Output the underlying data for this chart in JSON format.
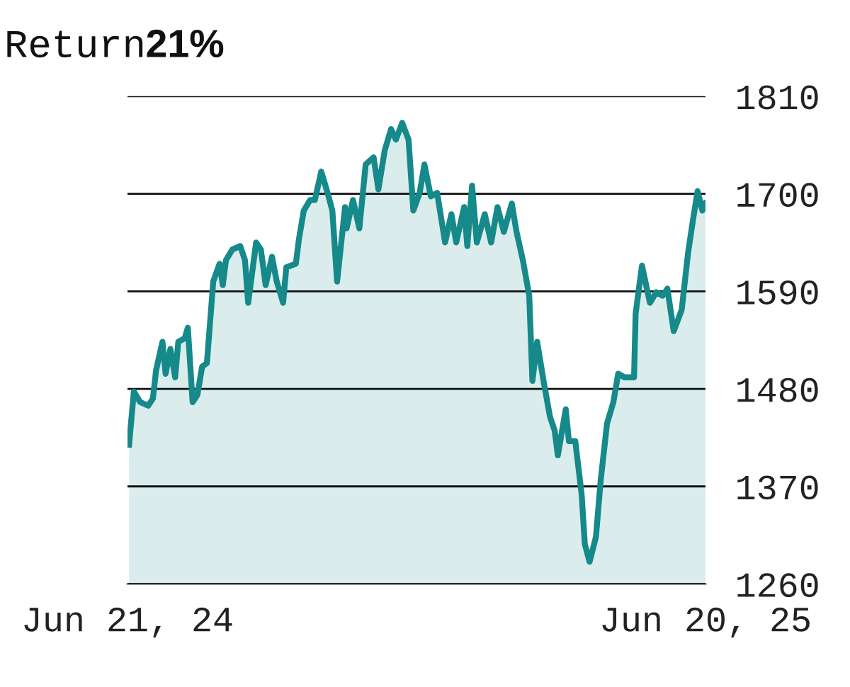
{
  "chart_data": {
    "type": "area",
    "title": "Return",
    "subtitle": "21%",
    "x": [
      "2024-06-22",
      "2024-06-25",
      "2024-06-29",
      "2024-07-04",
      "2024-07-07",
      "2024-07-09",
      "2024-07-13",
      "2024-07-15",
      "2024-07-18",
      "2024-07-21",
      "2024-07-23",
      "2024-07-27",
      "2024-07-29",
      "2024-08-01",
      "2024-08-04",
      "2024-08-07",
      "2024-08-10",
      "2024-08-14",
      "2024-08-18",
      "2024-08-20",
      "2024-08-22",
      "2024-08-26",
      "2024-08-31",
      "2024-09-03",
      "2024-09-05",
      "2024-09-10",
      "2024-09-13",
      "2024-09-16",
      "2024-09-20",
      "2024-09-23",
      "2024-09-27",
      "2024-09-29",
      "2024-10-05",
      "2024-10-07",
      "2024-10-10",
      "2024-10-14",
      "2024-10-17",
      "2024-10-21",
      "2024-10-25",
      "2024-10-28",
      "2024-10-31",
      "2024-11-05",
      "2024-11-06",
      "2024-11-10",
      "2024-11-14",
      "2024-11-18",
      "2024-11-23",
      "2024-11-26",
      "2024-11-30",
      "2024-12-04",
      "2024-12-07",
      "2024-12-11",
      "2024-12-15",
      "2024-12-18",
      "2024-12-22",
      "2024-12-25",
      "2024-12-29",
      "2025-01-02",
      "2025-01-07",
      "2025-01-11",
      "2025-01-14",
      "2025-01-19",
      "2025-01-21",
      "2025-01-24",
      "2025-01-27",
      "2025-02-01",
      "2025-02-05",
      "2025-02-09",
      "2025-02-13",
      "2025-02-18",
      "2025-02-21",
      "2025-02-25",
      "2025-03-01",
      "2025-03-03",
      "2025-03-06",
      "2025-03-10",
      "2025-03-14",
      "2025-03-17",
      "2025-03-19",
      "2025-03-24",
      "2025-03-26",
      "2025-03-30",
      "2025-04-03",
      "2025-04-05",
      "2025-04-08",
      "2025-04-12",
      "2025-04-15",
      "2025-04-19",
      "2025-04-23",
      "2025-04-26",
      "2025-04-30",
      "2025-05-06",
      "2025-05-07",
      "2025-05-11",
      "2025-05-16",
      "2025-05-20",
      "2025-05-24",
      "2025-05-27",
      "2025-05-31",
      "2025-06-05",
      "2025-06-09",
      "2025-06-12",
      "2025-06-15",
      "2025-06-18",
      "2025-06-20"
    ],
    "series": [
      {
        "color": "#16898a",
        "values": [
          1417,
          1477,
          1465,
          1461,
          1469,
          1501,
          1533,
          1497,
          1525,
          1493,
          1533,
          1537,
          1549,
          1465,
          1473,
          1505,
          1509,
          1601,
          1621,
          1597,
          1625,
          1637,
          1641,
          1625,
          1577,
          1645,
          1637,
          1597,
          1629,
          1601,
          1577,
          1617,
          1621,
          1649,
          1681,
          1693,
          1693,
          1725,
          1701,
          1681,
          1601,
          1685,
          1661,
          1693,
          1661,
          1733,
          1741,
          1705,
          1749,
          1773,
          1761,
          1780,
          1761,
          1681,
          1701,
          1733,
          1697,
          1701,
          1645,
          1677,
          1645,
          1685,
          1641,
          1709,
          1645,
          1677,
          1645,
          1685,
          1657,
          1689,
          1657,
          1625,
          1585,
          1489,
          1533,
          1489,
          1449,
          1433,
          1405,
          1457,
          1421,
          1421,
          1361,
          1305,
          1285,
          1313,
          1377,
          1441,
          1465,
          1497,
          1493,
          1493,
          1565,
          1619,
          1577,
          1589,
          1585,
          1593,
          1545,
          1569,
          1633,
          1669,
          1703,
          1681,
          1689
        ]
      }
    ],
    "xlim": [
      "2024-06-21",
      "2025-06-20"
    ],
    "xticks": [
      {
        "value": "2024-06-21",
        "label": "Jun 21, 24"
      },
      {
        "value": "2025-06-20",
        "label": "Jun 20, 25"
      }
    ],
    "ylim": [
      1260,
      1810
    ],
    "yticks": [
      1260,
      1370,
      1480,
      1590,
      1700,
      1810
    ],
    "grid": "y",
    "legend": false,
    "line_style": "solid",
    "marker": "none"
  }
}
